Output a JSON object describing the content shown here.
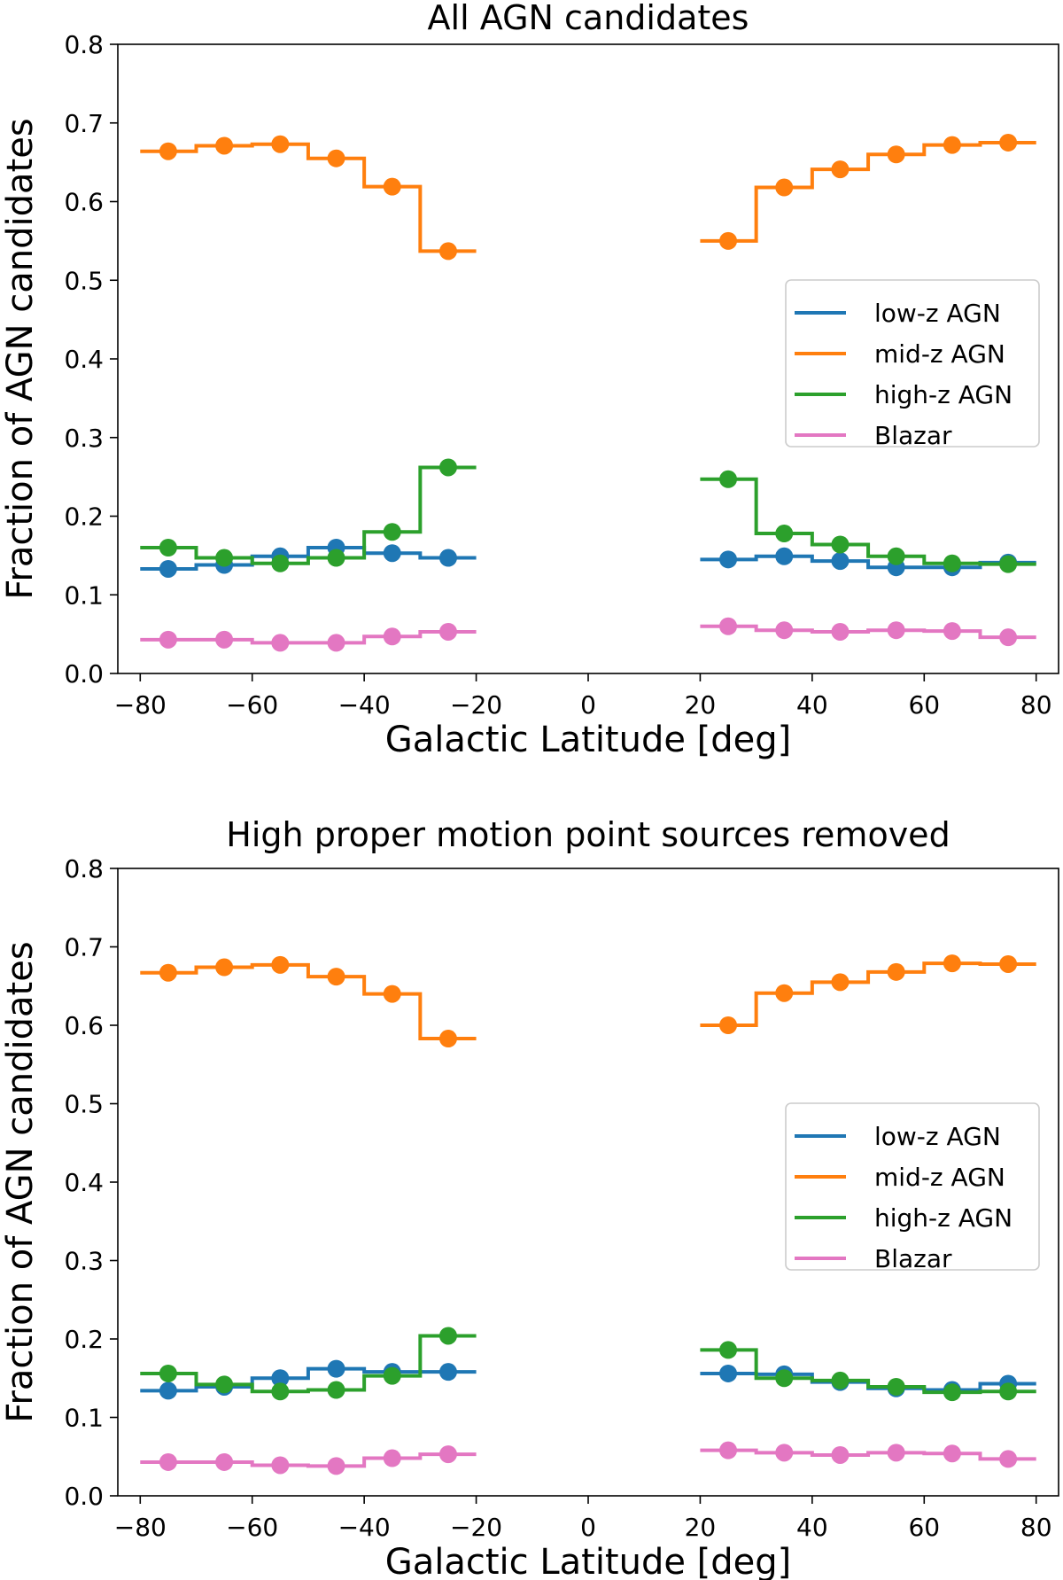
{
  "chart_data": [
    {
      "type": "line",
      "title": "All AGN candidates",
      "xlabel": "Galactic Latitude [deg]",
      "ylabel": "Fraction of AGN candidates",
      "xlim": [
        -84,
        84
      ],
      "ylim": [
        0.0,
        0.8
      ],
      "xticks": [
        -80,
        -60,
        -40,
        -20,
        0,
        20,
        40,
        60,
        80
      ],
      "xtick_labels": [
        "−80",
        "−60",
        "−40",
        "−20",
        "0",
        "20",
        "40",
        "60",
        "80"
      ],
      "yticks": [
        0.0,
        0.1,
        0.2,
        0.3,
        0.4,
        0.5,
        0.6,
        0.7,
        0.8
      ],
      "ytick_labels": [
        "0.0",
        "0.1",
        "0.2",
        "0.3",
        "0.4",
        "0.5",
        "0.6",
        "0.7",
        "0.8"
      ],
      "legend_position": "center-right",
      "step": "mid",
      "x": [
        -75,
        -65,
        -55,
        -45,
        -35,
        -25,
        25,
        35,
        45,
        55,
        65,
        75
      ],
      "series": [
        {
          "name": "low-z AGN",
          "color": "#1f77b4",
          "values": [
            0.133,
            0.138,
            0.149,
            0.16,
            0.153,
            0.147,
            0.145,
            0.149,
            0.143,
            0.135,
            0.135,
            0.141
          ]
        },
        {
          "name": "mid-z AGN",
          "color": "#ff7f0e",
          "values": [
            0.664,
            0.671,
            0.673,
            0.655,
            0.619,
            0.537,
            0.55,
            0.618,
            0.641,
            0.66,
            0.672,
            0.675
          ]
        },
        {
          "name": "high-z AGN",
          "color": "#2ca02c",
          "values": [
            0.16,
            0.147,
            0.14,
            0.147,
            0.18,
            0.262,
            0.247,
            0.178,
            0.164,
            0.149,
            0.14,
            0.139
          ]
        },
        {
          "name": "Blazar",
          "color": "#e377c2",
          "values": [
            0.043,
            0.043,
            0.039,
            0.039,
            0.047,
            0.053,
            0.06,
            0.055,
            0.053,
            0.055,
            0.054,
            0.046
          ]
        }
      ]
    },
    {
      "type": "line",
      "title": "High proper motion point sources removed",
      "xlabel": "Galactic Latitude [deg]",
      "ylabel": "Fraction of AGN candidates",
      "xlim": [
        -84,
        84
      ],
      "ylim": [
        0.0,
        0.8
      ],
      "xticks": [
        -80,
        -60,
        -40,
        -20,
        0,
        20,
        40,
        60,
        80
      ],
      "xtick_labels": [
        "−80",
        "−60",
        "−40",
        "−20",
        "0",
        "20",
        "40",
        "60",
        "80"
      ],
      "yticks": [
        0.0,
        0.1,
        0.2,
        0.3,
        0.4,
        0.5,
        0.6,
        0.7,
        0.8
      ],
      "ytick_labels": [
        "0.0",
        "0.1",
        "0.2",
        "0.3",
        "0.4",
        "0.5",
        "0.6",
        "0.7",
        "0.8"
      ],
      "legend_position": "center-right",
      "step": "mid",
      "x": [
        -75,
        -65,
        -55,
        -45,
        -35,
        -25,
        25,
        35,
        45,
        55,
        65,
        75
      ],
      "series": [
        {
          "name": "low-z AGN",
          "color": "#1f77b4",
          "values": [
            0.134,
            0.139,
            0.15,
            0.162,
            0.158,
            0.158,
            0.156,
            0.155,
            0.145,
            0.137,
            0.135,
            0.143
          ]
        },
        {
          "name": "mid-z AGN",
          "color": "#ff7f0e",
          "values": [
            0.667,
            0.674,
            0.677,
            0.662,
            0.64,
            0.583,
            0.6,
            0.641,
            0.655,
            0.668,
            0.679,
            0.678
          ]
        },
        {
          "name": "high-z AGN",
          "color": "#2ca02c",
          "values": [
            0.156,
            0.142,
            0.133,
            0.135,
            0.153,
            0.204,
            0.186,
            0.15,
            0.147,
            0.139,
            0.132,
            0.133
          ]
        },
        {
          "name": "Blazar",
          "color": "#e377c2",
          "values": [
            0.043,
            0.043,
            0.039,
            0.038,
            0.048,
            0.053,
            0.058,
            0.055,
            0.052,
            0.055,
            0.054,
            0.047
          ]
        }
      ]
    }
  ]
}
